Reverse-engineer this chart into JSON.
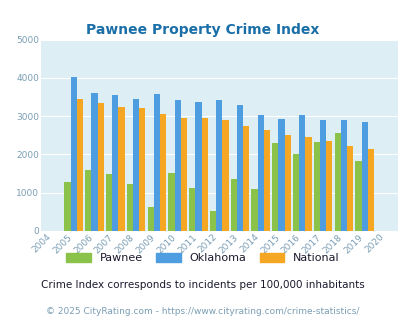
{
  "title": "Pawnee Property Crime Index",
  "years": [
    2004,
    2005,
    2006,
    2007,
    2008,
    2009,
    2010,
    2011,
    2012,
    2013,
    2014,
    2015,
    2016,
    2017,
    2018,
    2019,
    2020
  ],
  "pawnee": [
    0,
    1280,
    1590,
    1490,
    1220,
    620,
    1520,
    1120,
    510,
    1370,
    1110,
    2290,
    2000,
    2330,
    2570,
    1820,
    0
  ],
  "oklahoma": [
    0,
    4030,
    3600,
    3540,
    3450,
    3580,
    3410,
    3360,
    3420,
    3300,
    3030,
    2930,
    3030,
    2890,
    2890,
    2840,
    0
  ],
  "national": [
    0,
    3460,
    3350,
    3250,
    3220,
    3060,
    2960,
    2960,
    2900,
    2750,
    2630,
    2500,
    2460,
    2350,
    2210,
    2130,
    0
  ],
  "pawnee_color": "#8bc34a",
  "oklahoma_color": "#4d9de0",
  "national_color": "#f5a623",
  "bg_color": "#ddeef5",
  "ylim": [
    0,
    5000
  ],
  "yticks": [
    0,
    1000,
    2000,
    3000,
    4000,
    5000
  ],
  "subtitle": "Crime Index corresponds to incidents per 100,000 inhabitants",
  "footer": "© 2025 CityRating.com - https://www.cityrating.com/crime-statistics/",
  "title_color": "#1a6fa8",
  "subtitle_color": "#1a1a2e",
  "footer_color": "#7a9eb5",
  "grid_color": "#ffffff",
  "tick_color": "#7a9eb5"
}
